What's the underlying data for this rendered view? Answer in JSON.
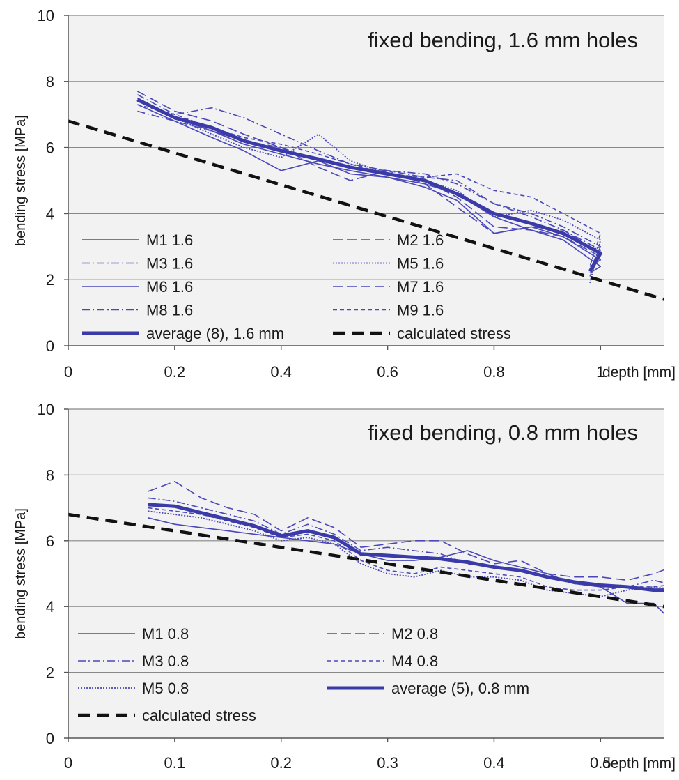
{
  "chart_data": [
    {
      "type": "line",
      "title": "fixed bending, 1.6 mm holes",
      "xlabel": "depth [mm]",
      "ylabel": "bending stress [MPa]",
      "xlim": [
        0,
        1.12
      ],
      "ylim": [
        0,
        10
      ],
      "x_ticks": [
        0,
        0.2,
        0.4,
        0.6,
        0.8,
        1
      ],
      "x_tick_labels": [
        "0",
        "0.2",
        "0.4",
        "0.6",
        "0.8",
        "1"
      ],
      "y_ticks": [
        0,
        2,
        4,
        6,
        8,
        10
      ],
      "y_tick_labels": [
        "0",
        "2",
        "4",
        "6",
        "8",
        "10"
      ],
      "grid": "horizontal",
      "legend_position": "bottom-left",
      "series": [
        {
          "name": "M1 1.6",
          "style": "solid",
          "x": [
            0.13,
            0.2,
            0.27,
            0.33,
            0.4,
            0.47,
            0.53,
            0.6,
            0.67,
            0.73,
            0.8,
            0.87,
            0.93,
            1.0,
            0.98
          ],
          "y": [
            7.4,
            6.9,
            6.5,
            6.1,
            5.8,
            5.5,
            5.3,
            5.1,
            4.9,
            4.6,
            3.9,
            3.5,
            3.2,
            2.4,
            2.2
          ]
        },
        {
          "name": "M2 1.6",
          "style": "dashed",
          "x": [
            0.13,
            0.2,
            0.27,
            0.33,
            0.4,
            0.47,
            0.53,
            0.6,
            0.67,
            0.73,
            0.8,
            0.87,
            0.93,
            1.0,
            0.98
          ],
          "y": [
            7.7,
            7.1,
            6.8,
            6.4,
            6.0,
            5.6,
            5.4,
            5.2,
            5.0,
            4.5,
            3.6,
            3.5,
            3.3,
            2.7,
            2.3
          ]
        },
        {
          "name": "M3 1.6",
          "style": "dashdot",
          "x": [
            0.13,
            0.2,
            0.27,
            0.33,
            0.4,
            0.47,
            0.53,
            0.6,
            0.67,
            0.73,
            0.8,
            0.87,
            0.93,
            1.0,
            0.98
          ],
          "y": [
            7.6,
            7.0,
            7.2,
            6.9,
            6.4,
            5.9,
            5.5,
            5.3,
            5.1,
            5.0,
            4.3,
            3.9,
            3.5,
            2.9,
            2.2
          ]
        },
        {
          "name": "M5 1.6",
          "style": "dotted",
          "x": [
            0.13,
            0.2,
            0.27,
            0.33,
            0.4,
            0.47,
            0.53,
            0.6,
            0.67,
            0.73,
            0.8,
            0.87,
            0.93,
            1.0,
            0.98
          ],
          "y": [
            7.5,
            6.9,
            6.4,
            6.0,
            5.7,
            6.4,
            5.6,
            5.2,
            5.0,
            4.7,
            3.9,
            4.1,
            3.8,
            3.2,
            1.9
          ]
        },
        {
          "name": "M6 1.6",
          "style": "solid",
          "x": [
            0.13,
            0.2,
            0.27,
            0.33,
            0.4,
            0.47,
            0.53,
            0.6,
            0.67,
            0.73,
            0.8,
            0.87,
            0.93,
            1.0,
            0.98
          ],
          "y": [
            7.3,
            6.8,
            6.3,
            5.9,
            5.3,
            5.6,
            5.2,
            5.1,
            4.8,
            4.4,
            3.4,
            3.6,
            3.3,
            2.6,
            2.4
          ]
        },
        {
          "name": "M7 1.6",
          "style": "dashed",
          "x": [
            0.13,
            0.2,
            0.27,
            0.33,
            0.4,
            0.47,
            0.53,
            0.6,
            0.67,
            0.73,
            0.8,
            0.87,
            0.93,
            1.0,
            0.98
          ],
          "y": [
            7.5,
            6.9,
            6.5,
            6.2,
            6.0,
            5.4,
            5.0,
            5.3,
            4.9,
            4.2,
            3.4,
            3.6,
            3.5,
            2.8,
            2.1
          ]
        },
        {
          "name": "M8 1.6",
          "style": "dashdot",
          "x": [
            0.13,
            0.2,
            0.27,
            0.33,
            0.4,
            0.47,
            0.53,
            0.6,
            0.67,
            0.73,
            0.8,
            0.87,
            0.93,
            1.0,
            0.98
          ],
          "y": [
            7.1,
            6.8,
            6.5,
            6.2,
            5.9,
            5.6,
            5.4,
            5.3,
            5.2,
            4.9,
            4.3,
            4.0,
            3.6,
            3.0,
            2.3
          ]
        },
        {
          "name": "M9 1.6",
          "style": "short-dash",
          "x": [
            0.13,
            0.2,
            0.27,
            0.33,
            0.4,
            0.47,
            0.53,
            0.6,
            0.67,
            0.73,
            0.8,
            0.87,
            0.93,
            1.0,
            0.98
          ],
          "y": [
            7.3,
            7.0,
            6.6,
            6.3,
            6.1,
            5.8,
            5.5,
            5.2,
            5.1,
            5.2,
            4.7,
            4.5,
            4.0,
            3.4,
            2.4
          ]
        },
        {
          "name": "average (8), 1.6 mm",
          "style": "thick",
          "x": [
            0.13,
            0.2,
            0.27,
            0.33,
            0.4,
            0.47,
            0.53,
            0.6,
            0.67,
            0.73,
            0.8,
            0.87,
            0.93,
            1.0,
            0.98
          ],
          "y": [
            7.45,
            6.9,
            6.6,
            6.2,
            5.9,
            5.65,
            5.4,
            5.2,
            5.0,
            4.6,
            4.0,
            3.7,
            3.4,
            2.8,
            2.25
          ]
        },
        {
          "name": "calculated stress",
          "style": "calc",
          "x": [
            0,
            1.12
          ],
          "y": [
            6.8,
            1.4
          ]
        }
      ]
    },
    {
      "type": "line",
      "title": "fixed bending, 0.8 mm holes",
      "xlabel": "depth [mm]",
      "ylabel": "bending stress [MPa]",
      "xlim": [
        0,
        0.56
      ],
      "ylim": [
        0,
        10
      ],
      "x_ticks": [
        0,
        0.1,
        0.2,
        0.3,
        0.4,
        0.5
      ],
      "x_tick_labels": [
        "0",
        "0.1",
        "0.2",
        "0.3",
        "0.4",
        "0.5"
      ],
      "y_ticks": [
        0,
        2,
        4,
        6,
        8,
        10
      ],
      "y_tick_labels": [
        "0",
        "2",
        "4",
        "6",
        "8",
        "10"
      ],
      "grid": "horizontal",
      "legend_position": "bottom-left",
      "series": [
        {
          "name": "M1 0.8",
          "style": "solid",
          "x": [
            0.075,
            0.1,
            0.125,
            0.15,
            0.175,
            0.2,
            0.225,
            0.25,
            0.275,
            0.3,
            0.325,
            0.35,
            0.375,
            0.4,
            0.425,
            0.45,
            0.475,
            0.5,
            0.525,
            0.55,
            0.575
          ],
          "y": [
            6.7,
            6.5,
            6.4,
            6.3,
            6.2,
            6.1,
            6.0,
            5.9,
            5.6,
            5.4,
            5.4,
            5.5,
            5.7,
            5.4,
            5.2,
            5.0,
            4.7,
            4.6,
            4.1,
            4.1,
            3.3
          ]
        },
        {
          "name": "M2 0.8",
          "style": "dashed",
          "x": [
            0.075,
            0.1,
            0.125,
            0.15,
            0.175,
            0.2,
            0.225,
            0.25,
            0.275,
            0.3,
            0.325,
            0.35,
            0.375,
            0.4,
            0.425,
            0.45,
            0.475,
            0.5,
            0.525,
            0.55,
            0.575
          ],
          "y": [
            7.5,
            7.8,
            7.3,
            7.0,
            6.8,
            6.3,
            6.7,
            6.4,
            5.8,
            5.9,
            6.0,
            6.0,
            5.6,
            5.3,
            5.4,
            5.0,
            4.9,
            4.9,
            4.8,
            5.0,
            5.3
          ]
        },
        {
          "name": "M3 0.8",
          "style": "dashdot",
          "x": [
            0.075,
            0.1,
            0.125,
            0.15,
            0.175,
            0.2,
            0.225,
            0.25,
            0.275,
            0.3,
            0.325,
            0.35,
            0.375,
            0.4,
            0.425,
            0.45,
            0.475,
            0.5,
            0.525,
            0.55,
            0.575
          ],
          "y": [
            7.3,
            7.2,
            7.0,
            6.8,
            6.6,
            6.2,
            6.5,
            6.2,
            5.7,
            5.8,
            5.7,
            5.6,
            5.3,
            5.2,
            5.1,
            4.9,
            4.7,
            4.6,
            4.6,
            4.8,
            4.6
          ]
        },
        {
          "name": "M4 0.8",
          "style": "short-dash",
          "x": [
            0.075,
            0.1,
            0.125,
            0.15,
            0.175,
            0.2,
            0.225,
            0.25,
            0.275,
            0.3,
            0.325,
            0.35,
            0.375,
            0.4,
            0.425,
            0.45,
            0.475,
            0.5,
            0.525,
            0.55,
            0.575
          ],
          "y": [
            7.0,
            6.9,
            6.8,
            6.6,
            6.4,
            6.1,
            6.2,
            6.0,
            5.4,
            5.1,
            5.0,
            5.2,
            5.1,
            5.0,
            4.9,
            4.6,
            4.5,
            4.5,
            4.6,
            4.6,
            4.7
          ]
        },
        {
          "name": "M5 0.8",
          "style": "dotted",
          "x": [
            0.075,
            0.1,
            0.125,
            0.15,
            0.175,
            0.2,
            0.225,
            0.25,
            0.275,
            0.3,
            0.325,
            0.35,
            0.375,
            0.4,
            0.425,
            0.45,
            0.475,
            0.5,
            0.525,
            0.55,
            0.575
          ],
          "y": [
            6.9,
            6.8,
            6.7,
            6.5,
            6.3,
            6.0,
            6.1,
            5.9,
            5.3,
            5.0,
            4.9,
            5.1,
            4.9,
            4.9,
            4.8,
            4.5,
            4.4,
            4.3,
            4.5,
            4.6,
            4.5
          ]
        },
        {
          "name": "average (5), 0.8 mm",
          "style": "thick",
          "x": [
            0.075,
            0.1,
            0.125,
            0.15,
            0.175,
            0.2,
            0.225,
            0.25,
            0.275,
            0.3,
            0.325,
            0.35,
            0.375,
            0.4,
            0.425,
            0.45,
            0.475,
            0.5,
            0.525,
            0.55,
            0.575
          ],
          "y": [
            7.1,
            7.05,
            6.85,
            6.65,
            6.45,
            6.15,
            6.3,
            6.1,
            5.6,
            5.55,
            5.5,
            5.45,
            5.35,
            5.2,
            5.1,
            4.9,
            4.75,
            4.65,
            4.6,
            4.5,
            4.5
          ]
        },
        {
          "name": "calculated stress",
          "style": "calc",
          "x": [
            0,
            0.56
          ],
          "y": [
            6.8,
            4.0
          ]
        }
      ]
    }
  ],
  "colors": {
    "series": "#4a48b8",
    "average": "#3a3aa8",
    "calculated": "#111111",
    "plot_background": "#f2f2f2",
    "grid": "#888888"
  }
}
